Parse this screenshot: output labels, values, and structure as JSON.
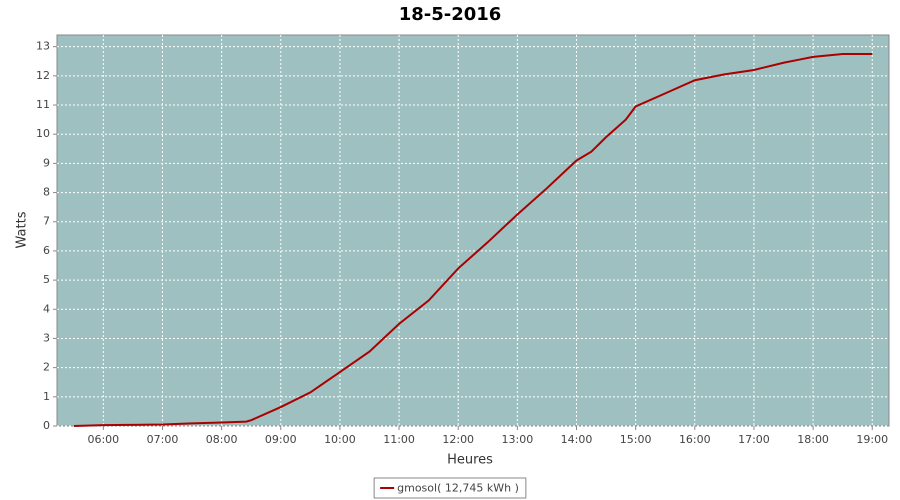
{
  "chart_data": {
    "type": "line",
    "title": "18-5-2016",
    "x_label": "Heures",
    "y_label": "Watts",
    "x": [
      "05:30",
      "06:00",
      "06:30",
      "07:00",
      "07:30",
      "08:00",
      "08:25",
      "08:30",
      "09:00",
      "09:30",
      "10:00",
      "10:30",
      "11:00",
      "11:30",
      "12:00",
      "12:30",
      "13:00",
      "13:30",
      "14:00",
      "14:15",
      "14:30",
      "14:50",
      "15:00",
      "15:30",
      "16:00",
      "16:30",
      "17:00",
      "17:30",
      "17:45",
      "18:00",
      "18:30",
      "19:00"
    ],
    "series": [
      {
        "name": "gmosol( 12,745 kWh )",
        "color": "#aa0000",
        "values": [
          0,
          0.03,
          0.04,
          0.05,
          0.09,
          0.12,
          0.15,
          0.2,
          0.65,
          1.15,
          1.85,
          2.55,
          3.5,
          4.3,
          5.4,
          6.3,
          7.25,
          8.15,
          9.1,
          9.4,
          9.9,
          10.5,
          10.95,
          11.4,
          11.85,
          12.05,
          12.2,
          12.45,
          12.55,
          12.65,
          12.75,
          12.75
        ]
      }
    ],
    "xlim": [
      "05:13",
      "19:17"
    ],
    "xticks": [
      "06:00",
      "07:00",
      "08:00",
      "09:00",
      "10:00",
      "11:00",
      "12:00",
      "13:00",
      "14:00",
      "15:00",
      "16:00",
      "17:00",
      "18:00",
      "19:00"
    ],
    "ylim": [
      0,
      13.4
    ],
    "yticks": [
      0,
      1,
      2,
      3,
      4,
      5,
      6,
      7,
      8,
      9,
      10,
      11,
      12,
      13
    ],
    "grid": true,
    "plot_background": "#9fc0c0",
    "legend": "bottom"
  }
}
